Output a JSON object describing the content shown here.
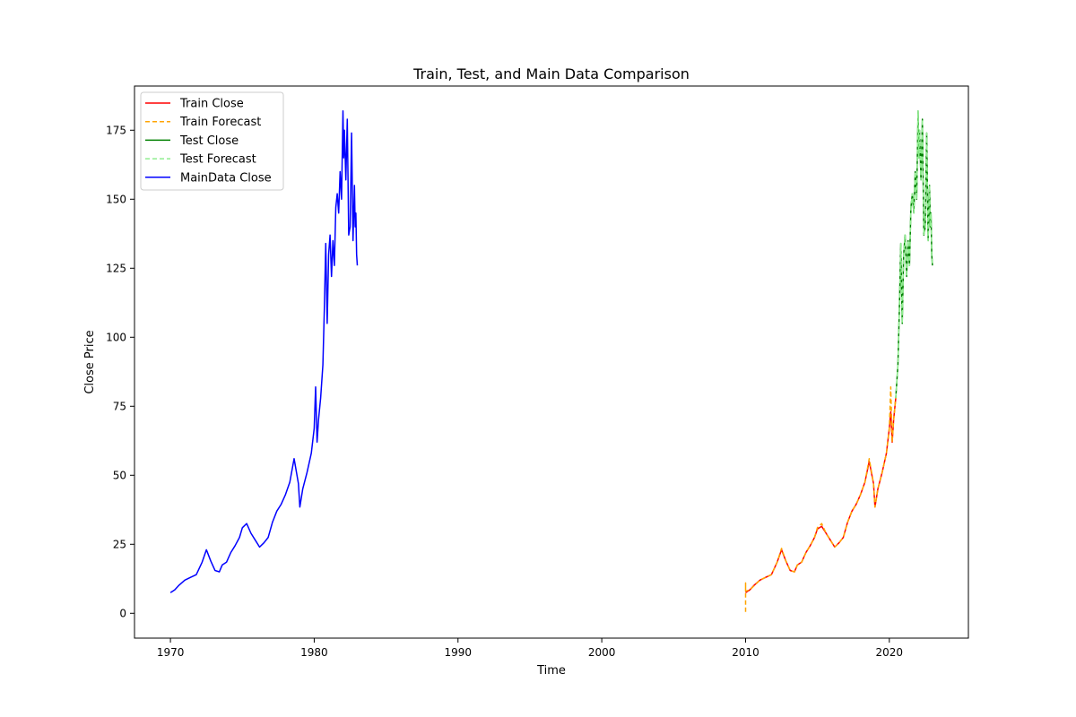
{
  "chart_data": {
    "type": "line",
    "title": "Train, Test, and Main Data Comparison",
    "xlabel": "Time",
    "ylabel": "Close Price",
    "xlim": [
      1967.5,
      2025.5
    ],
    "ylim": [
      -9,
      191
    ],
    "x_ticks": [
      1970,
      1980,
      1990,
      2000,
      2010,
      2020
    ],
    "y_ticks": [
      0,
      25,
      50,
      75,
      100,
      125,
      150,
      175
    ],
    "grid": false,
    "legend_position": "top-left",
    "series": [
      {
        "name": "Train Close",
        "color": "#ff0000",
        "style": "solid",
        "x": [
          2010.0,
          2010.3,
          2010.6,
          2011.0,
          2011.4,
          2011.8,
          2012.2,
          2012.5,
          2012.8,
          2013.1,
          2013.4,
          2013.6,
          2013.9,
          2014.2,
          2014.5,
          2014.8,
          2015.0,
          2015.3,
          2015.6,
          2015.9,
          2016.2,
          2016.5,
          2016.8,
          2017.1,
          2017.4,
          2017.7,
          2018.0,
          2018.3,
          2018.6,
          2018.9,
          2019.0,
          2019.2,
          2019.5,
          2019.8,
          2020.0,
          2020.1,
          2020.2,
          2020.3,
          2020.45
        ],
        "y": [
          7.5,
          8.5,
          10.2,
          12.0,
          13.0,
          14.0,
          18.5,
          23.0,
          19.0,
          15.5,
          15.0,
          17.5,
          18.5,
          22.0,
          24.5,
          27.5,
          30.5,
          31.5,
          29.0,
          26.5,
          24.0,
          25.5,
          27.5,
          33.0,
          37.0,
          39.5,
          43.0,
          47.5,
          55.0,
          47.0,
          38.5,
          45.0,
          51.0,
          58.0,
          67.0,
          73.0,
          62.0,
          70.0,
          78.0
        ]
      },
      {
        "name": "Train Forecast",
        "color": "#ffa500",
        "style": "dashed",
        "x": [
          2010.0,
          2010.0,
          2010.0,
          2010.3,
          2010.6,
          2011.0,
          2011.4,
          2011.8,
          2012.2,
          2012.5,
          2012.8,
          2013.1,
          2013.4,
          2013.6,
          2013.9,
          2014.2,
          2014.5,
          2014.8,
          2015.0,
          2015.3,
          2015.6,
          2015.9,
          2016.2,
          2016.5,
          2016.8,
          2017.1,
          2017.4,
          2017.7,
          2018.0,
          2018.3,
          2018.6,
          2018.9,
          2019.0,
          2019.2,
          2019.5,
          2019.8,
          2020.0,
          2020.1,
          2020.2,
          2020.3,
          2020.45
        ],
        "y": [
          0.5,
          11.0,
          8.0,
          8.5,
          10.0,
          12.0,
          13.0,
          14.0,
          18.5,
          23.5,
          19.0,
          15.5,
          15.0,
          17.5,
          18.5,
          22.0,
          24.5,
          27.5,
          31.0,
          32.5,
          29.0,
          26.5,
          24.0,
          25.5,
          27.5,
          33.0,
          37.0,
          39.5,
          43.0,
          47.5,
          56.0,
          47.0,
          38.5,
          45.0,
          51.0,
          58.0,
          67.0,
          82.0,
          62.0,
          70.0,
          78.0
        ]
      },
      {
        "name": "Test Close",
        "color": "#008000",
        "style": "solid",
        "x": [
          2020.45,
          2020.6,
          2020.7,
          2020.8,
          2020.9,
          2021.0,
          2021.1,
          2021.2,
          2021.3,
          2021.4,
          2021.5,
          2021.6,
          2021.7,
          2021.8,
          2021.9,
          2022.0,
          2022.05,
          2022.1,
          2022.2,
          2022.3,
          2022.4,
          2022.5,
          2022.6,
          2022.7,
          2022.8,
          2022.85,
          2022.9,
          2022.95,
          2023.0
        ],
        "y": [
          78.0,
          90.0,
          110.0,
          134.0,
          105.0,
          130.0,
          137.0,
          122.0,
          135.0,
          126.0,
          147.0,
          152.0,
          145.0,
          160.0,
          150.0,
          182.0,
          165.0,
          175.0,
          157.0,
          179.0,
          137.0,
          140.0,
          174.0,
          135.0,
          155.0,
          140.0,
          145.0,
          130.0,
          126.0
        ]
      },
      {
        "name": "Test Forecast",
        "color": "#90ee90",
        "style": "dashed",
        "x": [
          2020.45,
          2020.6,
          2020.7,
          2020.8,
          2020.9,
          2021.0,
          2021.1,
          2021.2,
          2021.3,
          2021.4,
          2021.5,
          2021.6,
          2021.7,
          2021.8,
          2021.9,
          2022.0,
          2022.05,
          2022.1,
          2022.2,
          2022.3,
          2022.4,
          2022.5,
          2022.6,
          2022.7,
          2022.8,
          2022.85,
          2022.9,
          2022.95,
          2023.0
        ],
        "y": [
          78.0,
          90.0,
          110.0,
          134.0,
          105.0,
          130.0,
          137.0,
          122.0,
          135.0,
          126.0,
          147.0,
          152.0,
          145.0,
          160.0,
          150.0,
          182.0,
          165.0,
          175.0,
          157.0,
          179.0,
          137.0,
          140.0,
          174.0,
          135.0,
          155.0,
          140.0,
          145.0,
          130.0,
          126.0
        ]
      },
      {
        "name": "MainData Close",
        "color": "#0000ff",
        "style": "solid",
        "x": [
          1970.0,
          1970.3,
          1970.6,
          1971.0,
          1971.4,
          1971.8,
          1972.2,
          1972.5,
          1972.8,
          1973.1,
          1973.4,
          1973.6,
          1973.9,
          1974.2,
          1974.5,
          1974.8,
          1975.0,
          1975.3,
          1975.6,
          1975.9,
          1976.2,
          1976.5,
          1976.8,
          1977.1,
          1977.4,
          1977.7,
          1978.0,
          1978.3,
          1978.6,
          1978.9,
          1979.0,
          1979.2,
          1979.5,
          1979.8,
          1980.0,
          1980.1,
          1980.2,
          1980.3,
          1980.45,
          1980.6,
          1980.7,
          1980.8,
          1980.9,
          1981.0,
          1981.1,
          1981.2,
          1981.3,
          1981.4,
          1981.5,
          1981.6,
          1981.7,
          1981.8,
          1981.9,
          1982.0,
          1982.05,
          1982.1,
          1982.2,
          1982.3,
          1982.4,
          1982.5,
          1982.6,
          1982.7,
          1982.8,
          1982.85,
          1982.9,
          1982.95,
          1983.0
        ],
        "y": [
          7.5,
          8.5,
          10.2,
          12.0,
          13.0,
          14.0,
          18.5,
          23.0,
          19.0,
          15.5,
          15.0,
          17.5,
          18.5,
          22.0,
          24.5,
          27.5,
          31.0,
          32.5,
          29.0,
          26.5,
          24.0,
          25.5,
          27.5,
          33.0,
          37.0,
          39.5,
          43.0,
          47.5,
          56.0,
          47.0,
          38.5,
          45.0,
          51.0,
          58.0,
          67.0,
          82.0,
          62.0,
          70.0,
          78.0,
          90.0,
          110.0,
          134.0,
          105.0,
          130.0,
          137.0,
          122.0,
          135.0,
          126.0,
          147.0,
          152.0,
          145.0,
          160.0,
          150.0,
          182.0,
          165.0,
          175.0,
          157.0,
          179.0,
          137.0,
          140.0,
          174.0,
          135.0,
          155.0,
          140.0,
          145.0,
          130.0,
          126.0
        ]
      }
    ]
  }
}
